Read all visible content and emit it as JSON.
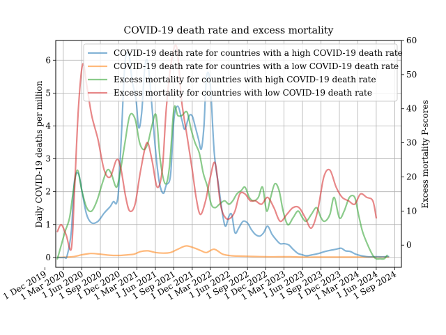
{
  "chart_data": {
    "type": "line",
    "title": "COVID-19 death rate and excess mortality",
    "ylabel": "Daily COVID-19 deaths per million",
    "y2label": "Excess mortality P-scores",
    "ylim": [
      -0.3,
      6.6
    ],
    "y2lim": [
      -6.5,
      60
    ],
    "yticks": [
      0,
      1,
      2,
      3,
      4,
      5,
      6
    ],
    "y2ticks": [
      0,
      10,
      20,
      30,
      40,
      50,
      60
    ],
    "xticks": [
      "1 Dec 2019",
      "1 Mar 2020",
      "1 Jun 2020",
      "1 Sep 2020",
      "1 Dec 2020",
      "1 Mar 2021",
      "1 Jun 2021",
      "1 Sep 2021",
      "1 Dec 2021",
      "1 Mar 2022",
      "1 Jun 2022",
      "1 Sep 2022",
      "1 Dec 2022",
      "1 Mar 2023",
      "1 Jun 2023",
      "1 Sep 2023",
      "1 Dec 2023",
      "1 Mar 2024",
      "1 Jun 2024",
      "1 Sep 2024"
    ],
    "grid": true,
    "legend": "top-right",
    "colors": [
      "#1f77b4",
      "#ff7f0e",
      "#2ca02c",
      "#d62728"
    ],
    "series": [
      {
        "name": "COVID-19 death rate for countries with a high COVID-19 death rate",
        "axis": "left",
        "x": [
          "2020-02-01",
          "2020-03-05",
          "2020-03-20",
          "2020-04-10",
          "2020-04-25",
          "2020-05-15",
          "2020-06-05",
          "2020-06-25",
          "2020-07-20",
          "2020-08-20",
          "2020-09-20",
          "2020-10-20",
          "2020-11-05",
          "2020-11-20",
          "2020-12-01",
          "2020-12-15",
          "2021-01-01",
          "2021-01-20",
          "2021-02-05",
          "2021-02-25",
          "2021-03-10",
          "2021-03-25",
          "2021-04-10",
          "2021-04-25",
          "2021-05-15",
          "2021-06-01",
          "2021-06-20",
          "2021-07-10",
          "2021-07-25",
          "2021-08-15",
          "2021-09-01",
          "2021-09-20",
          "2021-10-10",
          "2021-10-25",
          "2021-11-15",
          "2021-12-01",
          "2021-12-15",
          "2022-01-01",
          "2022-01-15",
          "2022-01-28",
          "2022-02-10",
          "2022-02-28",
          "2022-03-20",
          "2022-04-10",
          "2022-05-01",
          "2022-05-15",
          "2022-06-01",
          "2022-06-15",
          "2022-07-01",
          "2022-07-20",
          "2022-08-10",
          "2022-09-01",
          "2022-09-20",
          "2022-10-10",
          "2022-11-01",
          "2022-11-20",
          "2022-12-10",
          "2023-01-01",
          "2023-01-20",
          "2023-02-10",
          "2023-03-01",
          "2023-03-25",
          "2023-04-15",
          "2023-05-10",
          "2023-06-01",
          "2023-06-20",
          "2023-07-20",
          "2023-08-20",
          "2023-09-20",
          "2023-10-20",
          "2023-11-15",
          "2023-12-10",
          "2024-01-01",
          "2024-01-25",
          "2024-02-20",
          "2024-03-20",
          "2024-04-20",
          "2024-05-15",
          "2024-06-15",
          "2024-07-15",
          "2024-08-01"
        ],
        "y": [
          0,
          0,
          0.05,
          0.8,
          2.3,
          2.55,
          1.9,
          1.3,
          1.05,
          1.1,
          1.35,
          1.55,
          1.7,
          1.65,
          2.1,
          3.8,
          5.9,
          6.2,
          5.4,
          4.8,
          3.95,
          4.4,
          5.8,
          5.9,
          4.6,
          3.3,
          2.3,
          1.95,
          2.2,
          2.5,
          4.2,
          4.6,
          4.2,
          3.9,
          4.3,
          4.3,
          4.0,
          3.6,
          3.3,
          4.0,
          5.5,
          5.3,
          3.2,
          2.2,
          1.3,
          0.95,
          1.25,
          1.3,
          0.75,
          0.9,
          1.1,
          1.05,
          0.85,
          0.7,
          0.65,
          0.75,
          0.95,
          0.7,
          0.55,
          0.42,
          0.42,
          0.38,
          0.25,
          0.12,
          0.08,
          0.05,
          0.08,
          0.12,
          0.18,
          0.22,
          0.25,
          0.28,
          0.2,
          0.18,
          0.1,
          0.05,
          0.02,
          0.02,
          0.02,
          0.02,
          0.03
        ]
      },
      {
        "name": "COVID-19 death rate for countries with a low COVID-19 death rate",
        "axis": "left",
        "x": [
          "2020-02-01",
          "2020-04-15",
          "2020-06-01",
          "2020-07-15",
          "2020-09-01",
          "2020-10-15",
          "2020-12-01",
          "2021-01-15",
          "2021-02-15",
          "2021-03-20",
          "2021-04-25",
          "2021-06-01",
          "2021-07-10",
          "2021-08-15",
          "2021-09-20",
          "2021-11-01",
          "2021-12-15",
          "2022-01-15",
          "2022-02-10",
          "2022-03-20",
          "2022-05-01",
          "2022-06-15",
          "2022-08-01",
          "2022-10-01",
          "2022-12-01",
          "2023-02-01",
          "2023-04-01",
          "2023-06-01",
          "2023-08-01",
          "2023-10-01",
          "2023-12-01",
          "2024-02-01",
          "2024-04-01",
          "2024-06-01",
          "2024-08-01"
        ],
        "y": [
          0,
          0.02,
          0.08,
          0.12,
          0.1,
          0.07,
          0.06,
          0.08,
          0.1,
          0.18,
          0.2,
          0.15,
          0.13,
          0.15,
          0.25,
          0.35,
          0.28,
          0.2,
          0.15,
          0.25,
          0.1,
          0.05,
          0.04,
          0.03,
          0.02,
          0.02,
          0.02,
          0.01,
          0.01,
          0.01,
          0.01,
          0.01,
          0.01,
          0.01,
          0.01
        ]
      },
      {
        "name": "Excess mortality for countries with high COVID-19 death rate",
        "axis": "right",
        "x": [
          "2020-02-01",
          "2020-02-20",
          "2020-03-10",
          "2020-04-01",
          "2020-04-20",
          "2020-05-10",
          "2020-06-01",
          "2020-06-25",
          "2020-07-20",
          "2020-08-15",
          "2020-09-10",
          "2020-10-05",
          "2020-10-25",
          "2020-11-20",
          "2020-12-10",
          "2021-01-01",
          "2021-01-25",
          "2021-02-20",
          "2021-03-15",
          "2021-04-05",
          "2021-04-25",
          "2021-05-15",
          "2021-06-05",
          "2021-06-25",
          "2021-07-20",
          "2021-08-10",
          "2021-09-01",
          "2021-09-20",
          "2021-10-10",
          "2021-11-05",
          "2021-11-25",
          "2021-12-15",
          "2022-01-05",
          "2022-01-25",
          "2022-02-15",
          "2022-03-05",
          "2022-03-25",
          "2022-04-15",
          "2022-05-10",
          "2022-06-01",
          "2022-06-20",
          "2022-07-10",
          "2022-08-01",
          "2022-08-20",
          "2022-09-10",
          "2022-10-01",
          "2022-10-25",
          "2022-11-15",
          "2022-12-05",
          "2022-12-25",
          "2023-01-15",
          "2023-02-05",
          "2023-02-25",
          "2023-03-20",
          "2023-04-15",
          "2023-05-10",
          "2023-06-01",
          "2023-06-20",
          "2023-07-15",
          "2023-08-10",
          "2023-09-01",
          "2023-09-20",
          "2023-10-15",
          "2023-11-05",
          "2023-12-01",
          "2023-12-25",
          "2024-01-20",
          "2024-02-15",
          "2024-03-05",
          "2024-03-25",
          "2024-04-20",
          "2024-05-15",
          "2024-06-01",
          "2024-06-20",
          "2024-07-10",
          "2024-07-25"
        ],
        "y": [
          -4,
          0,
          4,
          8,
          16,
          22,
          16,
          11,
          10,
          13,
          18,
          22,
          21,
          17,
          22,
          30,
          38,
          37,
          30,
          28,
          30,
          35,
          38,
          25,
          18,
          23,
          40,
          38,
          38,
          39,
          34,
          30,
          27,
          21,
          17,
          12,
          11,
          12,
          13,
          12,
          13,
          15,
          16,
          17,
          14,
          13,
          14,
          17,
          10,
          14,
          18,
          16,
          10,
          6,
          8,
          10,
          8,
          7,
          9,
          11,
          8,
          7,
          9,
          14,
          8,
          10,
          14,
          14,
          9,
          4,
          0,
          -3,
          -4,
          -4,
          -4,
          -3
        ],
        "_note": ""
      },
      {
        "name": "Excess mortality for countries with low COVID-19 death rate",
        "axis": "right",
        "x": [
          "2020-02-01",
          "2020-02-20",
          "2020-03-15",
          "2020-04-10",
          "2020-04-25",
          "2020-05-15",
          "2020-06-05",
          "2020-06-25",
          "2020-07-20",
          "2020-08-20",
          "2020-09-20",
          "2020-10-20",
          "2020-11-20",
          "2020-12-10",
          "2021-01-05",
          "2021-01-25",
          "2021-02-20",
          "2021-03-20",
          "2021-04-20",
          "2021-05-15",
          "2021-06-10",
          "2021-07-05",
          "2021-07-25",
          "2021-08-20",
          "2021-09-15",
          "2021-10-10",
          "2021-11-05",
          "2021-12-01",
          "2021-12-20",
          "2022-01-10",
          "2022-02-05",
          "2022-03-01",
          "2022-03-25",
          "2022-04-20",
          "2022-05-15",
          "2022-06-10",
          "2022-07-01",
          "2022-07-25",
          "2022-08-20",
          "2022-09-15",
          "2022-10-10",
          "2022-11-10",
          "2022-12-10",
          "2023-01-10",
          "2023-02-10",
          "2023-03-15",
          "2023-04-15",
          "2023-05-15",
          "2023-06-15",
          "2023-07-15",
          "2023-08-15",
          "2023-09-15",
          "2023-10-15",
          "2023-11-15",
          "2023-12-15",
          "2024-01-15",
          "2024-02-15",
          "2024-03-15",
          "2024-04-15",
          "2024-05-15",
          "2024-06-01"
        ],
        "y": [
          4,
          6,
          3,
          -1,
          15,
          40,
          53,
          47,
          38,
          31,
          22,
          20,
          25,
          23,
          14,
          10,
          12,
          22,
          30,
          25,
          17,
          22,
          40,
          54,
          58,
          42,
          32,
          22,
          14,
          9,
          13,
          20,
          24,
          12,
          8,
          8,
          10,
          15,
          15,
          13,
          13,
          12,
          14,
          11,
          7,
          9,
          11,
          11,
          8,
          5,
          10,
          20,
          22,
          17,
          14,
          13,
          12,
          15,
          14,
          13,
          8
        ]
      }
    ]
  }
}
